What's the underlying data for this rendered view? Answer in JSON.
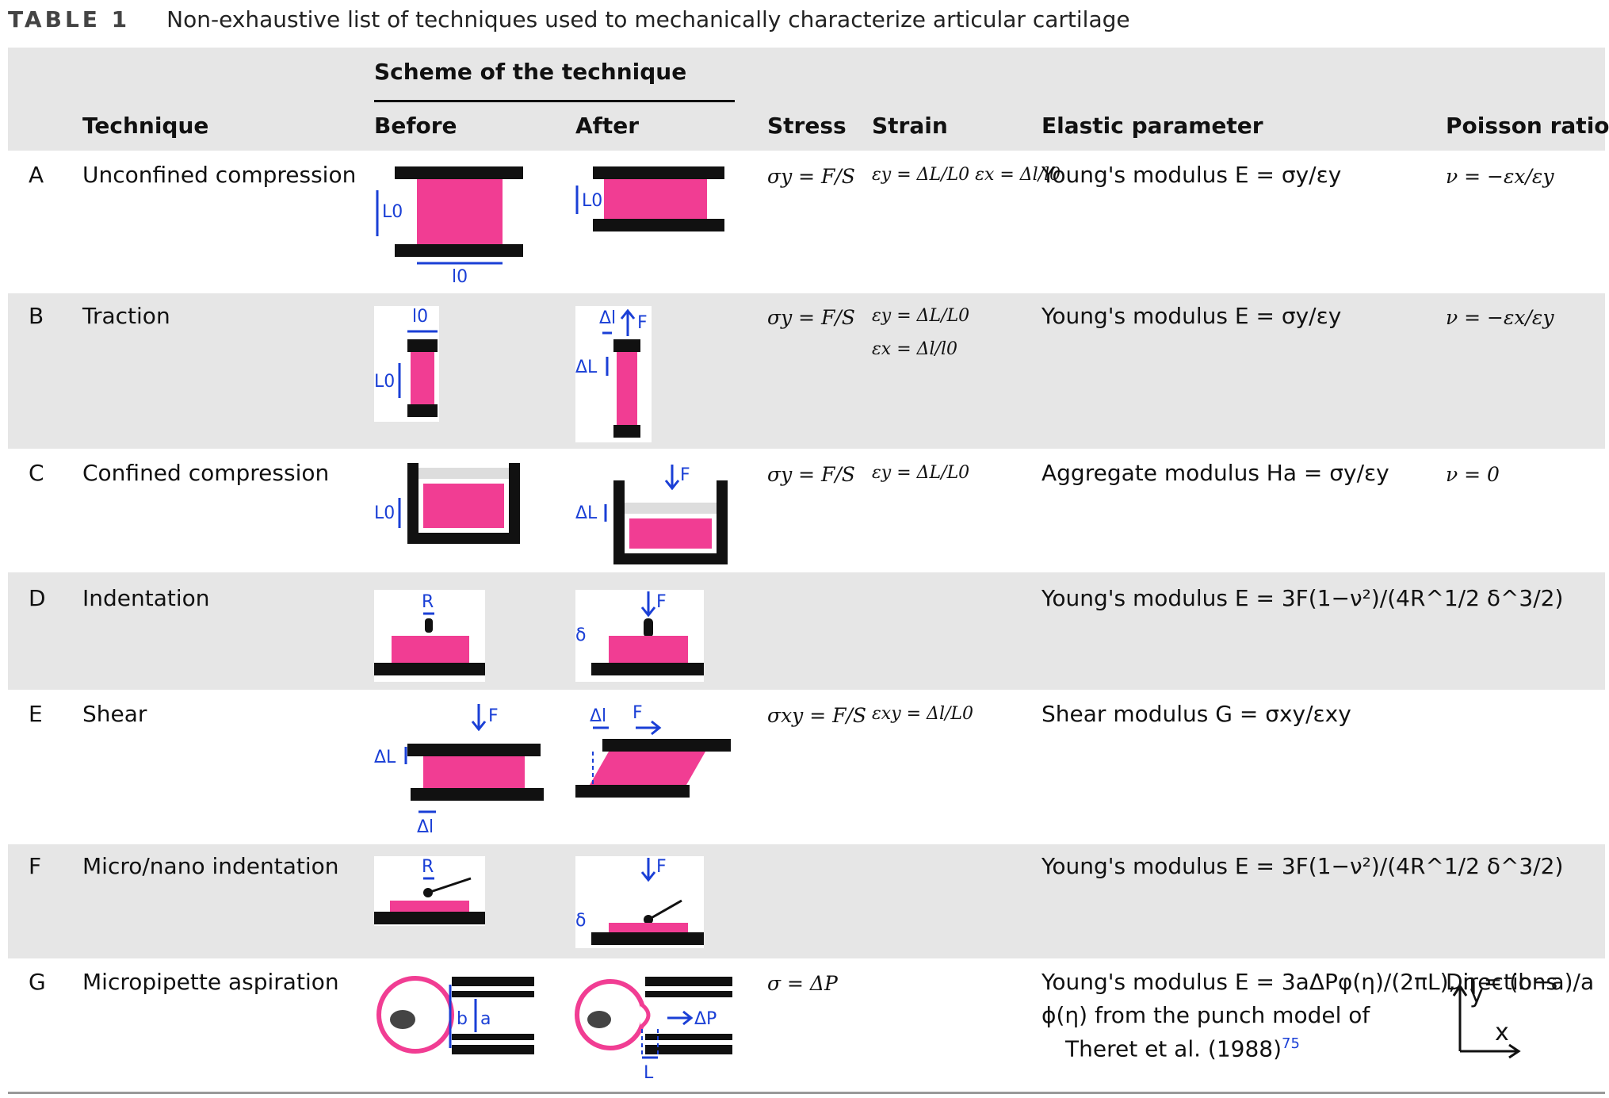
{
  "caption": {
    "label": "TABLE 1",
    "title": "Non-exhaustive list of techniques used to mechanically characterize articular cartilage"
  },
  "header": {
    "scheme_group": "Scheme of the technique",
    "technique": "Technique",
    "before": "Before",
    "after": "After",
    "stress": "Stress",
    "strain": "Strain",
    "elastic": "Elastic parameter",
    "poisson": "Poisson ratio"
  },
  "rows": [
    {
      "letter": "A",
      "technique": "Unconfined compression",
      "stress": "σy = F/S",
      "strain": "εy = ΔL/L0   εx = Δl/l0",
      "elastic": "Young's modulus E = σy/εy",
      "poisson": "ν = −εx/εy"
    },
    {
      "letter": "B",
      "technique": "Traction",
      "stress": "σy = F/S",
      "strain": "εy = ΔL/L0",
      "strain2": "εx = Δl/l0",
      "elastic": "Young's modulus E = σy/εy",
      "poisson": "ν = −εx/εy"
    },
    {
      "letter": "C",
      "technique": "Confined compression",
      "stress": "σy = F/S",
      "strain": "εy = ΔL/L0",
      "elastic": "Aggregate modulus Ha = σy/εy",
      "poisson": "ν = 0"
    },
    {
      "letter": "D",
      "technique": "Indentation",
      "elastic": "Young's modulus E = 3F(1−ν²)/(4R^1/2 δ^3/2)"
    },
    {
      "letter": "E",
      "technique": "Shear",
      "stress": "σxy = F/S",
      "strain": "εxy = Δl/L0",
      "elastic": "Shear modulus G = σxy/εxy"
    },
    {
      "letter": "F",
      "technique": "Micro/nano indentation",
      "elastic": "Young's modulus E = 3F(1−ν²)/(4R^1/2 δ^3/2)"
    },
    {
      "letter": "G",
      "technique": "Micropipette aspiration",
      "stress": "σ = ΔP",
      "elastic": "Young's modulus E = 3aΔPφ(η)/(2πL), η = (b−a)/a",
      "elastic2": "ϕ(η) from the punch model of",
      "elastic3": "Theret et al. (1988)",
      "citation": "75",
      "poisson": "Directions"
    }
  ],
  "scheme_labels": {
    "L0": "L0",
    "l0": "l0",
    "dL": "ΔL",
    "dl": "Δl",
    "F": "F",
    "R": "R",
    "delta": "δ",
    "b": "b",
    "a": "a",
    "dP": "ΔP",
    "L": "L",
    "y": "y",
    "x": "x"
  },
  "colors": {
    "sample": "#f13d93",
    "annotation": "#1a3fd6",
    "plate": "#111111",
    "row_gray": "#e6e6e6"
  }
}
